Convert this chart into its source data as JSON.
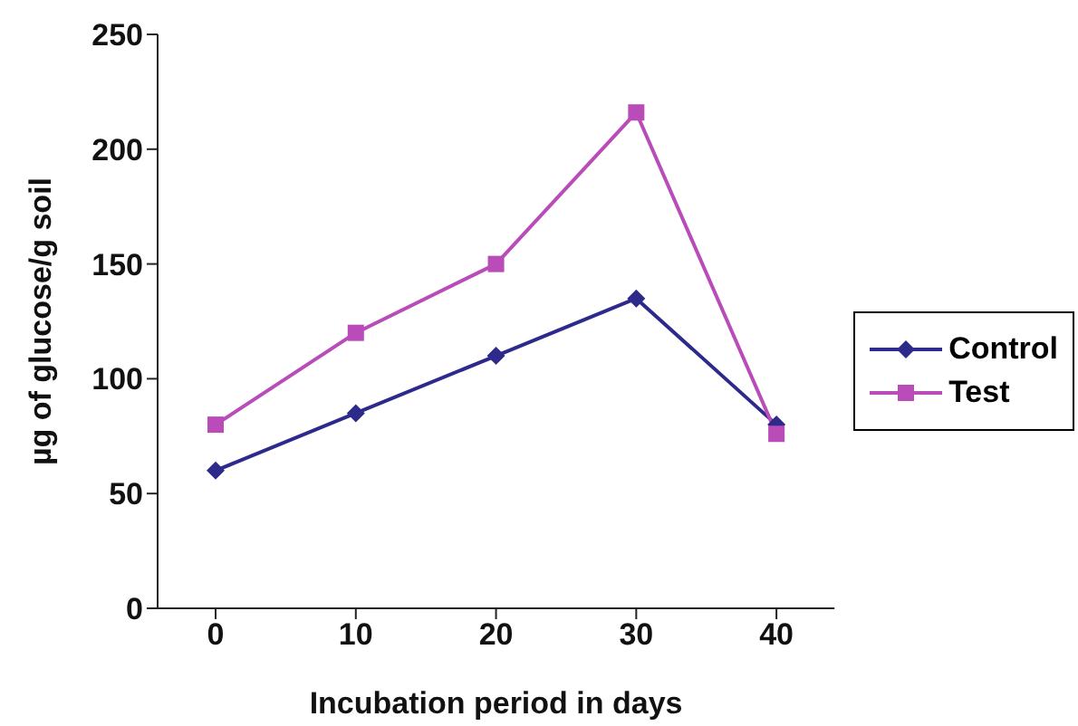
{
  "chart_data": {
    "type": "line",
    "xlabel": "Incubation period in days",
    "ylabel": "µg of glucose/g soil",
    "categories": [
      "0",
      "10",
      "20",
      "30",
      "40"
    ],
    "series": [
      {
        "name": "Control",
        "color": "#2e2a8c",
        "marker": "diamond",
        "values": [
          60,
          85,
          110,
          135,
          80
        ]
      },
      {
        "name": "Test",
        "color": "#b94cb8",
        "marker": "square",
        "values": [
          80,
          120,
          150,
          216,
          76
        ]
      }
    ],
    "ylim": [
      0,
      250
    ],
    "yticks": [
      0,
      50,
      100,
      150,
      200,
      250
    ],
    "grid": false,
    "legend": "right"
  }
}
